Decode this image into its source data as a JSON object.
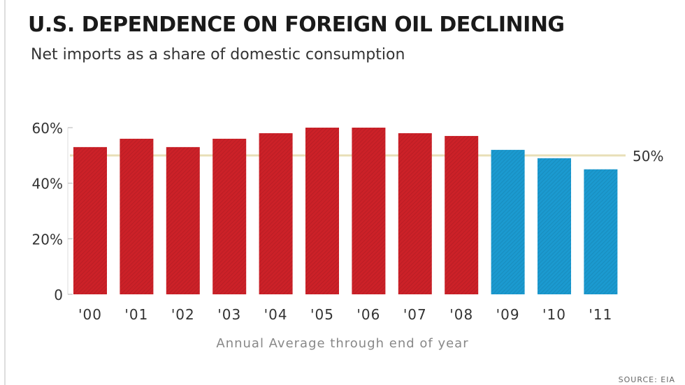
{
  "chart_data": {
    "type": "bar",
    "title": "U.S. DEPENDENCE ON FOREIGN OIL DECLINING",
    "subtitle": "Net imports as a share of domestic consumption",
    "xlabel": "Annual Average through end of year",
    "ylabel": "",
    "categories": [
      "'00",
      "'01",
      "'02",
      "'03",
      "'04",
      "'05",
      "'06",
      "'07",
      "'08",
      "'09",
      "'10",
      "'11"
    ],
    "values": [
      53,
      56,
      53,
      56,
      58,
      60,
      60,
      58,
      57,
      52,
      49,
      45
    ],
    "ylim": [
      0,
      60
    ],
    "yticks": [
      0,
      20,
      40,
      60
    ],
    "ytick_labels": [
      "0",
      "20%",
      "40%",
      "60%"
    ],
    "reference_line": {
      "value": 50,
      "label": "50%",
      "color": "#e8dfb8"
    },
    "colors": {
      "2000-2008": "#cc2128",
      "2009-2011": "#1b9ad0"
    },
    "blue_from_index": 9,
    "source": "SOURCE: EIA"
  }
}
